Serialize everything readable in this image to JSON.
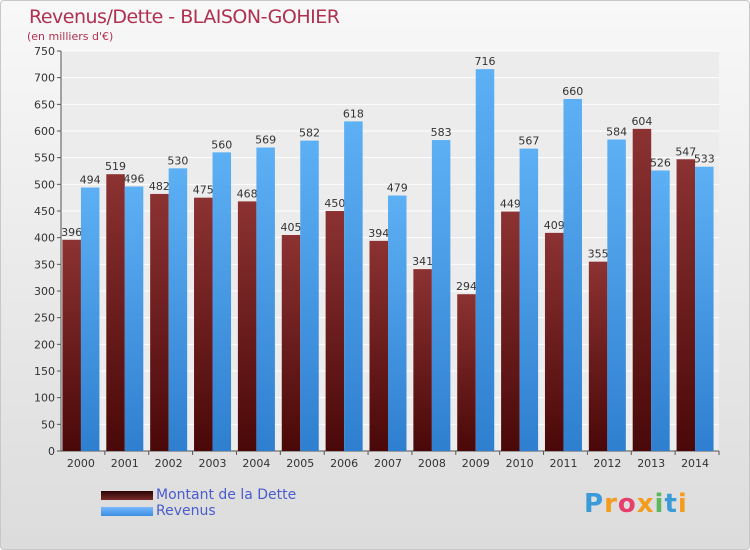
{
  "header": {
    "title": "Revenus/Dette - BLAISON-GOHIER",
    "subtitle": "(en milliers d'€)"
  },
  "legend": {
    "dette_label": "Montant de la Dette",
    "revenus_label": "Revenus"
  },
  "logo": {
    "text": "Proxiti",
    "letters": [
      {
        "ch": "P",
        "color": "#3a9bd8"
      },
      {
        "ch": "r",
        "color": "#f39c1e"
      },
      {
        "ch": "o",
        "color": "#e83e6c"
      },
      {
        "ch": "x",
        "color": "#f39c1e"
      },
      {
        "ch": "i",
        "color": "#5cb85c"
      },
      {
        "ch": "t",
        "color": "#3a9bd8"
      },
      {
        "ch": "i",
        "color": "#f39c1e"
      }
    ]
  },
  "colors": {
    "dette": "#7a2a2a",
    "revenus": "#4da3ec",
    "title": "#b03050",
    "legend_text": "#4a5ccc"
  },
  "chart_data": {
    "type": "bar",
    "title": "Revenus/Dette - BLAISON-GOHIER",
    "ylabel": "(en milliers d'€)",
    "categories": [
      "2000",
      "2001",
      "2002",
      "2003",
      "2004",
      "2005",
      "2006",
      "2007",
      "2008",
      "2009",
      "2010",
      "2011",
      "2012",
      "2013",
      "2014"
    ],
    "series": [
      {
        "name": "Montant de la Dette",
        "values": [
          396,
          519,
          482,
          475,
          468,
          405,
          450,
          394,
          341,
          294,
          449,
          409,
          355,
          604,
          547
        ]
      },
      {
        "name": "Revenus",
        "values": [
          494,
          496,
          530,
          560,
          569,
          582,
          618,
          479,
          583,
          716,
          567,
          660,
          584,
          526,
          533
        ]
      }
    ],
    "ylim": [
      0,
      750
    ],
    "yticks": [
      0,
      50,
      100,
      150,
      200,
      250,
      300,
      350,
      400,
      450,
      500,
      550,
      600,
      650,
      700,
      750
    ],
    "grid": true,
    "legend_position": "bottom-left"
  }
}
